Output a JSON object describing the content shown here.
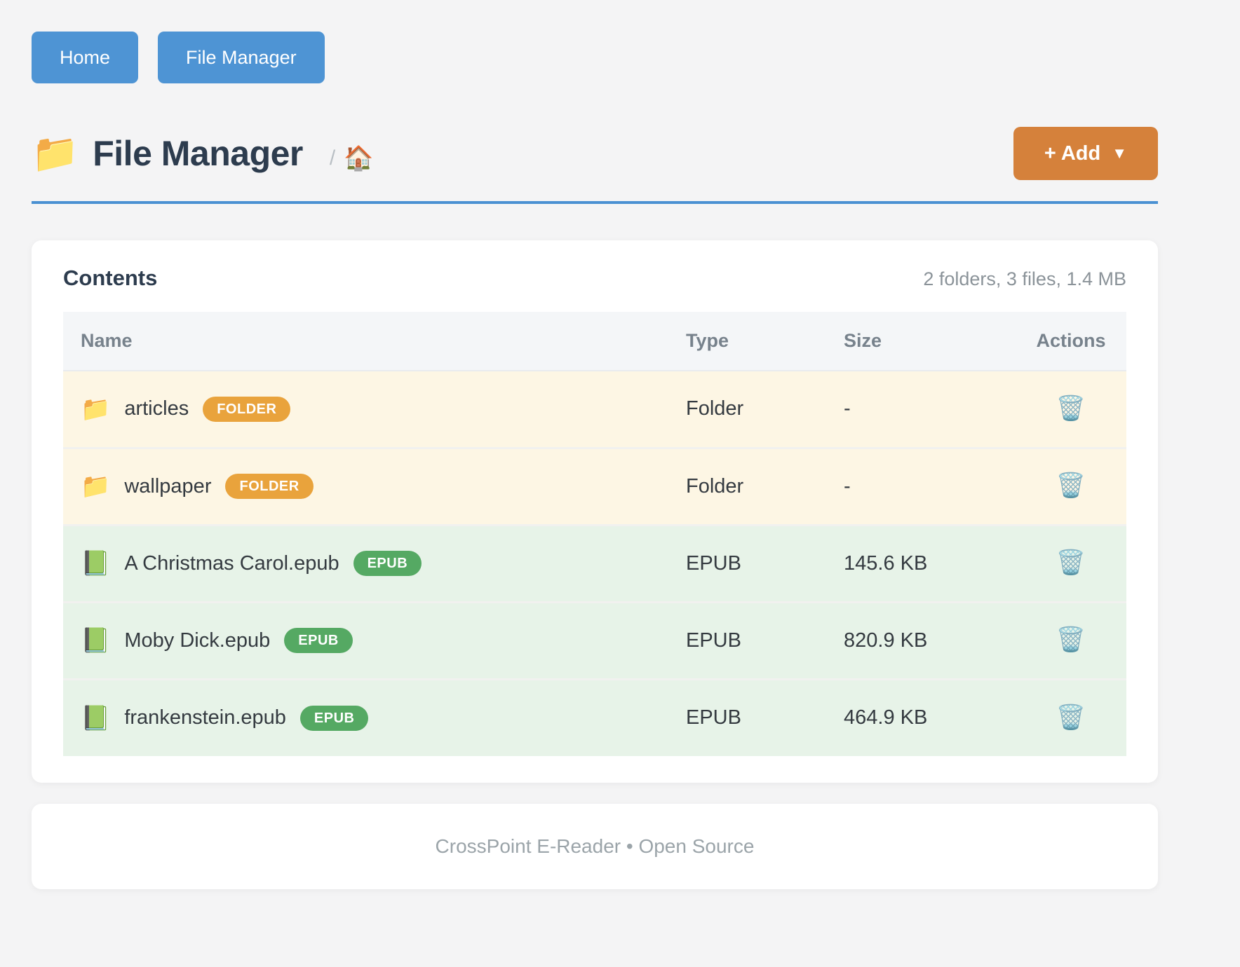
{
  "nav": {
    "home_label": "Home",
    "file_manager_label": "File Manager"
  },
  "header": {
    "title": "File Manager",
    "title_icon": "📁",
    "breadcrumb_separator": "/",
    "breadcrumb_home_icon": "🏠",
    "add_button_label": "+ Add",
    "add_button_caret": "▼"
  },
  "contents": {
    "title": "Contents",
    "summary": "2 folders, 3 files, 1.4 MB",
    "columns": {
      "name": "Name",
      "type": "Type",
      "size": "Size",
      "actions": "Actions"
    },
    "delete_icon": "🗑️",
    "rows": [
      {
        "icon": "📁",
        "name": "articles",
        "badge": "FOLDER",
        "type": "Folder",
        "size": "-",
        "kind": "folder"
      },
      {
        "icon": "📁",
        "name": "wallpaper",
        "badge": "FOLDER",
        "type": "Folder",
        "size": "-",
        "kind": "folder"
      },
      {
        "icon": "📗",
        "name": "A Christmas Carol.epub",
        "badge": "EPUB",
        "type": "EPUB",
        "size": "145.6 KB",
        "kind": "file"
      },
      {
        "icon": "📗",
        "name": "Moby Dick.epub",
        "badge": "EPUB",
        "type": "EPUB",
        "size": "820.9 KB",
        "kind": "file"
      },
      {
        "icon": "📗",
        "name": "frankenstein.epub",
        "badge": "EPUB",
        "type": "EPUB",
        "size": "464.9 KB",
        "kind": "file"
      }
    ]
  },
  "footer": {
    "text": "CrossPoint E-Reader • Open Source"
  },
  "colors": {
    "nav_button": "#4e94d4",
    "accent_rule": "#4a90d2",
    "add_button": "#d5813b",
    "folder_badge": "#e9a33c",
    "epub_badge": "#55a963",
    "folder_row_bg": "#fdf6e4",
    "file_row_bg": "#e7f3e8",
    "title_text": "#2d3c4e"
  }
}
